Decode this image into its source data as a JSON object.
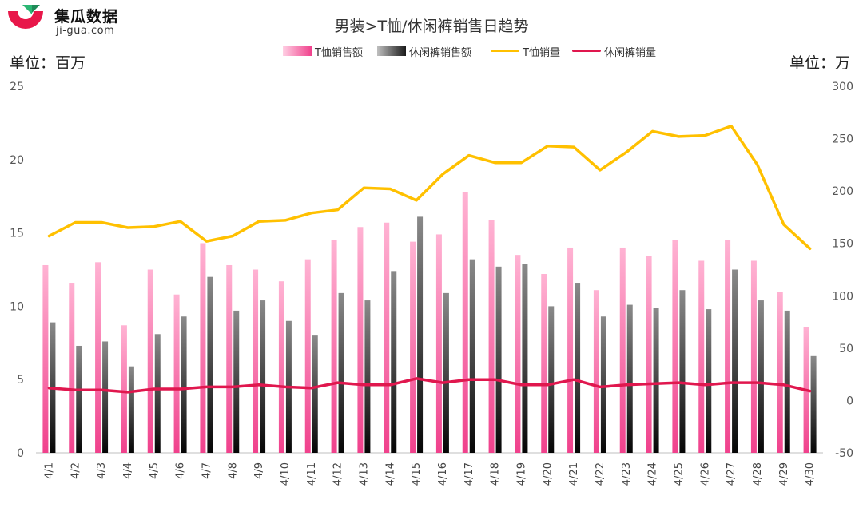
{
  "logo": {
    "name": "集瓜数据",
    "url_text": "ji-gua.com"
  },
  "chart_data": {
    "type": "bar",
    "title": "男装>T恤/休闲裤销售日趋势",
    "left_axis_unit": "单位：百万",
    "right_axis_unit": "单位：万",
    "ylim_left": [
      0,
      25
    ],
    "yticks_left": [
      0,
      5,
      10,
      15,
      20,
      25
    ],
    "ylim_right": [
      -50,
      300
    ],
    "yticks_right": [
      -50,
      0,
      50,
      100,
      150,
      200,
      250,
      300
    ],
    "legend_position": "top-center",
    "colors": {
      "tshirt_sales": "#f0418c",
      "pants_sales": "#1a1a1a",
      "tshirt_volume": "#ffc000",
      "pants_volume": "#e0174e"
    },
    "categories": [
      "4/1",
      "4/2",
      "4/3",
      "4/4",
      "4/5",
      "4/6",
      "4/7",
      "4/8",
      "4/9",
      "4/10",
      "4/11",
      "4/12",
      "4/13",
      "4/14",
      "4/15",
      "4/16",
      "4/17",
      "4/18",
      "4/19",
      "4/20",
      "4/21",
      "4/22",
      "4/23",
      "4/24",
      "4/25",
      "4/26",
      "4/27",
      "4/28",
      "4/29",
      "4/30"
    ],
    "series": [
      {
        "name": "T恤销售额",
        "type": "bar",
        "axis": "left",
        "values": [
          12.8,
          11.6,
          13.0,
          8.7,
          12.5,
          10.8,
          14.3,
          12.8,
          12.5,
          11.7,
          13.2,
          14.5,
          15.4,
          15.7,
          14.4,
          14.9,
          17.8,
          15.9,
          13.5,
          12.2,
          14.0,
          11.1,
          14.0,
          13.4,
          14.5,
          13.1,
          14.5,
          13.1,
          11.0,
          8.6
        ]
      },
      {
        "name": "休闲裤销售额",
        "type": "bar",
        "axis": "left",
        "values": [
          8.9,
          7.3,
          7.6,
          5.9,
          8.1,
          9.3,
          12.0,
          9.7,
          10.4,
          9.0,
          8.0,
          10.9,
          10.4,
          12.4,
          16.1,
          10.9,
          13.2,
          12.7,
          12.9,
          10.0,
          11.6,
          9.3,
          10.1,
          9.9,
          11.1,
          9.8,
          12.5,
          10.4,
          9.7,
          6.6
        ]
      },
      {
        "name": "T恤销量",
        "type": "line",
        "axis": "right",
        "values": [
          157,
          170,
          170,
          165,
          166,
          171,
          152,
          157,
          171,
          172,
          179,
          182,
          203,
          202,
          191,
          216,
          234,
          227,
          227,
          243,
          242,
          220,
          237,
          257,
          252,
          253,
          262,
          225,
          168,
          145
        ]
      },
      {
        "name": "休闲裤销量",
        "type": "line",
        "axis": "right",
        "values": [
          12,
          10,
          10,
          8,
          11,
          11,
          13,
          13,
          15,
          13,
          12,
          17,
          15,
          15,
          21,
          17,
          20,
          20,
          15,
          15,
          20,
          13,
          15,
          16,
          17,
          15,
          17,
          17,
          15,
          9
        ]
      }
    ]
  }
}
